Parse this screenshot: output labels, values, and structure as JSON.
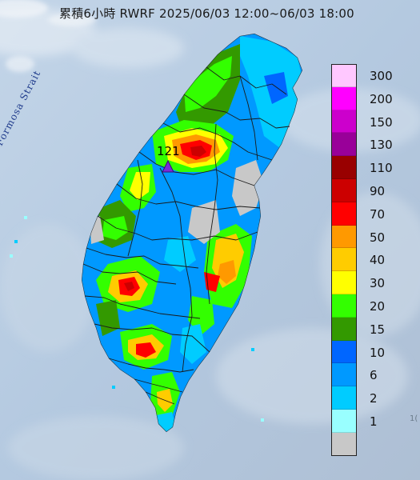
{
  "title": "累積6小時 RWRF 2025/06/03 12:00~06/03 18:00",
  "strait_label": "Formosa Strait",
  "max_marker": {
    "label": "121",
    "color": "#7a2bd6"
  },
  "corner_text": "1(",
  "legend": {
    "levels": [
      {
        "label": "300",
        "color": "#ffc8ff"
      },
      {
        "label": "200",
        "color": "#ff00ff"
      },
      {
        "label": "150",
        "color": "#cc00cc"
      },
      {
        "label": "130",
        "color": "#990099"
      },
      {
        "label": "110",
        "color": "#990000"
      },
      {
        "label": "90",
        "color": "#cc0000"
      },
      {
        "label": "70",
        "color": "#ff0000"
      },
      {
        "label": "50",
        "color": "#ff9900"
      },
      {
        "label": "40",
        "color": "#ffcc00"
      },
      {
        "label": "30",
        "color": "#ffff00"
      },
      {
        "label": "20",
        "color": "#33ff00"
      },
      {
        "label": "15",
        "color": "#339900"
      },
      {
        "label": "10",
        "color": "#0066ff"
      },
      {
        "label": "6",
        "color": "#0099ff"
      },
      {
        "label": "2",
        "color": "#00ccff"
      },
      {
        "label": "1",
        "color": "#99ffff"
      },
      {
        "label": "",
        "color": "#c8c8c8"
      }
    ]
  },
  "colors": {
    "sea": "#b9cde3",
    "cloud": "#e6eef6",
    "county_border": "#1a1a1a"
  }
}
